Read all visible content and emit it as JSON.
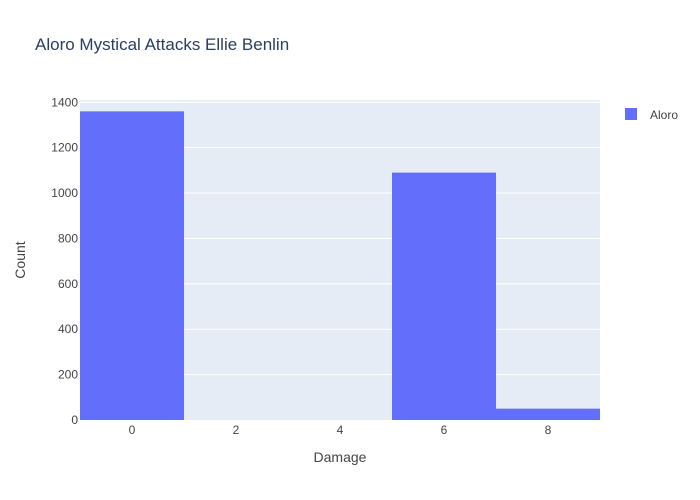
{
  "chart_data": {
    "type": "bar",
    "title": "Aloro Mystical Attacks Ellie Benlin",
    "xlabel": "Damage",
    "ylabel": "Count",
    "x_ticks": [
      "0",
      "2",
      "4",
      "6",
      "8"
    ],
    "y_ticks": [
      "0",
      "200",
      "400",
      "600",
      "800",
      "1000",
      "1200",
      "1400"
    ],
    "xlim": [
      -1,
      9
    ],
    "ylim": [
      0,
      1410
    ],
    "bin_width": 2,
    "grid": true,
    "legend_position": "top-right",
    "colors": {
      "bar": "#636efa",
      "plot_bg": "#e5ecf6",
      "grid": "#ffffff"
    },
    "series": [
      {
        "name": "Aloro",
        "bins": [
          {
            "x_start": -1,
            "x_end": 1,
            "value": 1360
          },
          {
            "x_start": 1,
            "x_end": 3,
            "value": 0
          },
          {
            "x_start": 3,
            "x_end": 5,
            "value": 0
          },
          {
            "x_start": 5,
            "x_end": 7,
            "value": 1090
          },
          {
            "x_start": 7,
            "x_end": 9,
            "value": 50
          }
        ]
      }
    ]
  }
}
